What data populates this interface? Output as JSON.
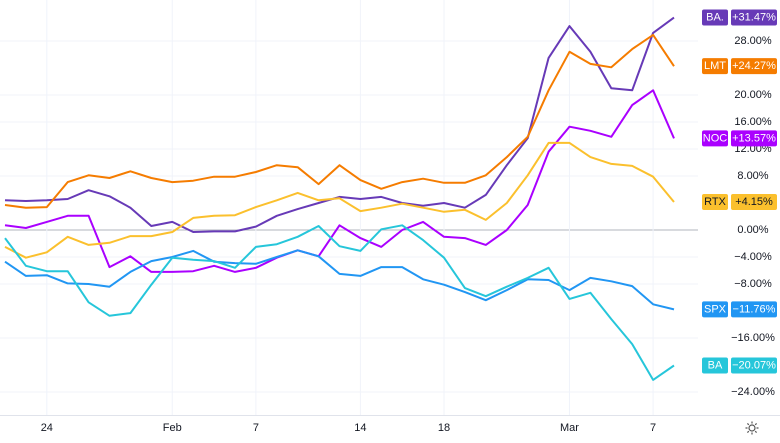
{
  "chart_data": {
    "type": "line",
    "categories": [
      null,
      null,
      "24",
      null,
      null,
      null,
      null,
      null,
      "Feb",
      null,
      null,
      null,
      "7",
      null,
      null,
      null,
      null,
      "14",
      null,
      null,
      null,
      "18",
      null,
      null,
      null,
      null,
      null,
      "Mar",
      null,
      null,
      null,
      "7",
      null
    ],
    "ylim": [
      -27.4,
      34.07
    ],
    "yticks": [
      {
        "value": 28,
        "label": "28.00%"
      },
      {
        "value": 20,
        "label": "20.00%"
      },
      {
        "value": 16,
        "label": "16.00%"
      },
      {
        "value": 12,
        "label": "12.00%"
      },
      {
        "value": 8,
        "label": "8.00%"
      },
      {
        "value": 0,
        "label": "0.00%"
      },
      {
        "value": -4,
        "label": "−4.00%"
      },
      {
        "value": -8,
        "label": "−8.00%"
      },
      {
        "value": -16,
        "label": "−16.00%"
      },
      {
        "value": -24,
        "label": "−24.00%"
      }
    ],
    "grid": true,
    "series": [
      {
        "name": "BA.",
        "color": "#673ab7",
        "values": [
          4.4,
          4.3,
          4.4,
          4.6,
          5.9,
          5.0,
          3.3,
          0.6,
          1.2,
          -0.3,
          -0.2,
          -0.2,
          0.5,
          2.1,
          3.1,
          4.0,
          4.9,
          4.6,
          4.9,
          4.0,
          3.6,
          4.0,
          3.3,
          5.2,
          9.6,
          13.6,
          25.5,
          30.2,
          26.4,
          21.0,
          20.7,
          29.2,
          31.47
        ],
        "value_labels": [
          null,
          null,
          null,
          null,
          null,
          null,
          null,
          null,
          null,
          null,
          null,
          null,
          null,
          null,
          null,
          null,
          null,
          null,
          null,
          null,
          null,
          null,
          null,
          null,
          null,
          null,
          null,
          null,
          null,
          null,
          null,
          null,
          "+31.47%"
        ]
      },
      {
        "name": "LMT",
        "color": "#f57c00",
        "values": [
          3.7,
          3.3,
          3.4,
          7.1,
          8.1,
          7.7,
          8.7,
          7.7,
          7.1,
          7.3,
          7.9,
          7.9,
          8.6,
          9.6,
          9.3,
          6.8,
          9.6,
          7.4,
          6.1,
          7.1,
          7.6,
          7.0,
          7.0,
          8.1,
          10.8,
          13.8,
          20.7,
          26.4,
          24.6,
          24.1,
          26.8,
          28.9,
          24.27
        ],
        "value_labels": [
          null,
          null,
          null,
          null,
          null,
          null,
          null,
          null,
          null,
          null,
          null,
          null,
          null,
          null,
          null,
          null,
          null,
          null,
          null,
          null,
          null,
          null,
          null,
          null,
          null,
          null,
          null,
          null,
          null,
          null,
          null,
          null,
          "+24.27%"
        ]
      },
      {
        "name": "NOC",
        "color": "#aa00ff",
        "values": [
          0.7,
          0.3,
          1.2,
          2.1,
          2.1,
          -5.5,
          -3.9,
          -6.2,
          -6.2,
          -6.1,
          -5.3,
          -6.2,
          -5.6,
          -4.1,
          -3.0,
          -3.9,
          0.7,
          -1.2,
          -2.5,
          0.0,
          1.2,
          -1.0,
          -1.2,
          -2.2,
          0.0,
          3.7,
          11.6,
          15.3,
          14.7,
          13.8,
          18.5,
          20.7,
          13.57
        ],
        "value_labels": [
          null,
          null,
          null,
          null,
          null,
          null,
          null,
          null,
          null,
          null,
          null,
          null,
          null,
          null,
          null,
          null,
          null,
          null,
          null,
          null,
          null,
          null,
          null,
          null,
          null,
          null,
          null,
          null,
          null,
          null,
          null,
          null,
          "+13.57%"
        ]
      },
      {
        "name": "RTX",
        "color": "#fbc02d",
        "values": [
          -2.5,
          -4.1,
          -3.3,
          -1.0,
          -2.2,
          -1.9,
          -0.9,
          -0.9,
          -0.3,
          1.8,
          2.1,
          2.2,
          3.4,
          4.4,
          5.5,
          4.4,
          4.7,
          2.8,
          3.3,
          3.9,
          3.3,
          2.7,
          3.0,
          1.5,
          4.0,
          8.1,
          12.9,
          12.9,
          10.8,
          9.8,
          9.5,
          7.9,
          4.15
        ],
        "value_labels": [
          null,
          null,
          null,
          null,
          null,
          null,
          null,
          null,
          null,
          null,
          null,
          null,
          null,
          null,
          null,
          null,
          null,
          null,
          null,
          null,
          null,
          null,
          null,
          null,
          null,
          null,
          null,
          null,
          null,
          null,
          null,
          null,
          "+4.15%"
        ]
      },
      {
        "name": "SPX",
        "color": "#2196f3",
        "values": [
          -4.7,
          -6.8,
          -6.7,
          -7.9,
          -8.0,
          -8.4,
          -6.2,
          -4.6,
          -4.0,
          -3.1,
          -4.7,
          -4.9,
          -5.0,
          -4.0,
          -3.0,
          -3.9,
          -6.5,
          -6.8,
          -5.5,
          -5.5,
          -7.3,
          -8.1,
          -9.2,
          -10.4,
          -8.9,
          -7.3,
          -7.4,
          -8.9,
          -7.1,
          -7.6,
          -8.3,
          -11.0,
          -11.76
        ],
        "value_labels": [
          null,
          null,
          null,
          null,
          null,
          null,
          null,
          null,
          null,
          null,
          null,
          null,
          null,
          null,
          null,
          null,
          null,
          null,
          null,
          null,
          null,
          null,
          null,
          null,
          null,
          null,
          null,
          null,
          null,
          null,
          null,
          null,
          "−11.76%"
        ]
      },
      {
        "name": "BA",
        "color": "#26c6da",
        "values": [
          -1.2,
          -5.3,
          -6.1,
          -6.1,
          -10.7,
          -12.7,
          -12.3,
          -8.1,
          -4.1,
          -4.4,
          -4.6,
          -5.6,
          -2.5,
          -2.1,
          -1.0,
          0.6,
          -2.4,
          -3.1,
          0.1,
          0.7,
          -1.5,
          -4.1,
          -8.6,
          -9.8,
          -8.4,
          -7.1,
          -5.6,
          -10.2,
          -9.3,
          -13.2,
          -16.9,
          -22.2,
          -20.07
        ],
        "value_labels": [
          null,
          null,
          null,
          null,
          null,
          null,
          null,
          null,
          null,
          null,
          null,
          null,
          null,
          null,
          null,
          null,
          null,
          null,
          null,
          null,
          null,
          null,
          null,
          null,
          null,
          null,
          null,
          null,
          null,
          null,
          null,
          null,
          "−20.07%"
        ]
      }
    ]
  }
}
